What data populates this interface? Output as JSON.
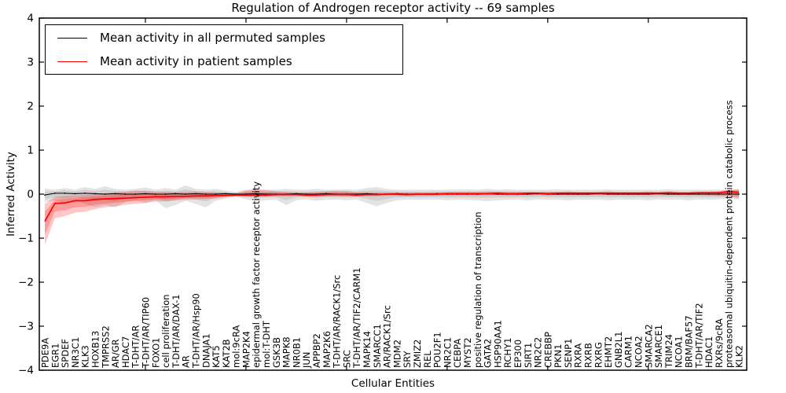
{
  "figure": {
    "title": "Regulation of Androgen receptor activity -- 69 samples",
    "xlabel": "Cellular Entities",
    "ylabel": "Inferred Activity"
  },
  "legend": {
    "items": [
      {
        "label": "Mean activity in all permuted samples",
        "color": "#000000"
      },
      {
        "label": "Mean activity in patient samples",
        "color": "#ff0000"
      }
    ]
  },
  "chart_data": {
    "type": "line",
    "title": "Regulation of Androgen receptor activity -- 69 samples",
    "xlabel": "Cellular Entities",
    "ylabel": "Inferred Activity",
    "ylim": [
      -4,
      4
    ],
    "yticks": [
      -4,
      -3,
      -2,
      -1,
      0,
      1,
      2,
      3,
      4
    ],
    "grid": false,
    "legend_position": "upper left",
    "categories": [
      "PDE9A",
      "EGR1",
      "SPDEF",
      "NR3C1",
      "KLK3",
      "HOXB13",
      "TMPRSS2",
      "AR/GR",
      "HDAC7",
      "T-DHT/AR",
      "T-DHT/AR/TIP60",
      "FOXO1",
      "cell proliferation",
      "T-DHT/AR/DAX-1",
      "AR",
      "T-DHT/AR/Hsp90",
      "DNAJA1",
      "KAT5",
      "KAT2B",
      "mol:9cRA",
      "MAP2K4",
      "epidermal growth factor receptor activity",
      "mol:T-DHT",
      "GSK3B",
      "MAPK8",
      "NR0B1",
      "JUN",
      "APPBP2",
      "MAP2K6",
      "T-DHT/AR/RACK1/Src",
      "SRC",
      "T-DHT/AR/TIF2/CARM1",
      "MAPK14",
      "SMARCC1",
      "AR/RACK1/Src",
      "MDM2",
      "SRY",
      "ZMIZ2",
      "REL",
      "POU2F1",
      "NR2C1",
      "CEBPA",
      "MYST2",
      "positive regulation of transcription",
      "GATA2",
      "HSP90AA1",
      "RCHY1",
      "EP300",
      "SIRT1",
      "NR2C2",
      "CREBBP",
      "PKN1",
      "SENP1",
      "RXRA",
      "RXRB",
      "RXRG",
      "EHMT2",
      "GNB2L1",
      "CARM1",
      "NCOA2",
      "SMARCA2",
      "SMARCE1",
      "TRIM24",
      "NCOA1",
      "BRM/BAF57",
      "T-DHT/AR/TIF2",
      "HDAC1",
      "RXRs/9cRA",
      "proteasomal ubiquitin-dependent protein catabolic process",
      "KLK2"
    ],
    "series": [
      {
        "name": "Mean activity in all permuted samples",
        "color": "#000000",
        "band_color": "#999999",
        "values": [
          -0.02,
          0.02,
          0.02,
          0.01,
          0.02,
          0.01,
          0,
          0.01,
          0,
          0,
          0.01,
          0,
          0,
          0.01,
          0,
          0.01,
          0,
          0,
          0.01,
          0,
          0,
          0.01,
          0,
          0,
          0,
          0.01,
          0,
          0,
          0.01,
          0,
          0,
          0,
          0.01,
          0,
          0,
          0.01,
          0,
          0,
          0,
          0.01,
          0,
          0,
          0,
          0,
          0.01,
          0,
          0,
          0,
          0,
          0.01,
          0,
          0,
          0,
          0,
          0,
          0.01,
          0,
          0,
          0,
          0,
          0,
          0.01,
          0,
          0,
          0,
          0,
          0,
          0,
          0,
          0
        ],
        "band_lo": [
          -0.18,
          -0.14,
          -0.2,
          -0.13,
          -0.22,
          -0.3,
          -0.25,
          -0.3,
          -0.18,
          -0.14,
          -0.2,
          -0.14,
          -0.32,
          -0.25,
          -0.15,
          -0.22,
          -0.3,
          -0.15,
          -0.1,
          -0.06,
          -0.12,
          -0.16,
          -0.14,
          -0.12,
          -0.25,
          -0.14,
          -0.12,
          -0.15,
          -0.13,
          -0.12,
          -0.14,
          -0.12,
          -0.2,
          -0.28,
          -0.2,
          -0.14,
          -0.12,
          -0.13,
          -0.12,
          -0.12,
          -0.14,
          -0.12,
          -0.13,
          -0.14,
          -0.16,
          -0.14,
          -0.13,
          -0.12,
          -0.14,
          -0.12,
          -0.13,
          -0.12,
          -0.14,
          -0.12,
          -0.13,
          -0.12,
          -0.14,
          -0.12,
          -0.13,
          -0.12,
          -0.14,
          -0.12,
          -0.13,
          -0.12,
          -0.14,
          -0.12,
          -0.13,
          -0.12,
          -0.1,
          -0.12
        ],
        "band_hi": [
          0.13,
          0.1,
          0.14,
          0.1,
          0.16,
          0.12,
          0.18,
          0.12,
          0.1,
          0.12,
          0.15,
          0.1,
          0.14,
          0.1,
          0.2,
          0.12,
          0.1,
          0.12,
          0.08,
          0.05,
          0.1,
          0.12,
          0.1,
          0.1,
          0.12,
          0.1,
          0.1,
          0.12,
          0.1,
          0.1,
          0.11,
          0.1,
          0.14,
          0.16,
          0.12,
          0.1,
          0.1,
          0.1,
          0.1,
          0.1,
          0.1,
          0.1,
          0.11,
          0.1,
          0.12,
          0.1,
          0.11,
          0.1,
          0.1,
          0.1,
          0.1,
          0.11,
          0.1,
          0.1,
          0.1,
          0.1,
          0.11,
          0.1,
          0.1,
          0.1,
          0.1,
          0.1,
          0.11,
          0.1,
          0.1,
          0.1,
          0.1,
          0.1,
          0.09,
          0.1
        ]
      },
      {
        "name": "Mean activity in patient samples",
        "color": "#ff0000",
        "band_color": "#ff0000",
        "values": [
          -0.62,
          -0.21,
          -0.2,
          -0.15,
          -0.15,
          -0.12,
          -0.11,
          -0.1,
          -0.09,
          -0.08,
          -0.07,
          -0.06,
          -0.06,
          -0.05,
          -0.05,
          -0.04,
          -0.04,
          -0.03,
          -0.03,
          -0.02,
          -0.02,
          -0.02,
          -0.02,
          -0.01,
          -0.01,
          -0.01,
          -0.02,
          -0.02,
          -0.01,
          -0.01,
          -0.01,
          -0.02,
          -0.01,
          -0.01,
          0,
          0,
          -0.01,
          0,
          0,
          0,
          0.01,
          0.01,
          0.01,
          0.01,
          0.01,
          0.02,
          0.01,
          0.01,
          0.02,
          0.02,
          0.01,
          0.02,
          0.02,
          0.02,
          0.02,
          0.02,
          0.02,
          0.02,
          0.02,
          0.02,
          0.02,
          0.02,
          0.03,
          0.02,
          0.02,
          0.03,
          0.03,
          0.03,
          0.06,
          0.04
        ],
        "band_lo": [
          -1.16,
          -0.55,
          -0.5,
          -0.42,
          -0.4,
          -0.34,
          -0.3,
          -0.28,
          -0.24,
          -0.22,
          -0.2,
          -0.17,
          -0.16,
          -0.14,
          -0.13,
          -0.12,
          -0.11,
          -0.1,
          -0.07,
          -0.05,
          -0.06,
          -0.06,
          -0.06,
          -0.05,
          -0.05,
          -0.04,
          -0.06,
          -0.06,
          -0.05,
          -0.05,
          -0.05,
          -0.06,
          -0.05,
          -0.05,
          -0.04,
          -0.04,
          -0.05,
          -0.04,
          -0.04,
          -0.04,
          -0.03,
          -0.03,
          -0.03,
          -0.03,
          -0.03,
          -0.02,
          -0.03,
          -0.03,
          -0.02,
          -0.02,
          -0.03,
          -0.02,
          -0.02,
          -0.02,
          -0.02,
          -0.02,
          -0.02,
          -0.02,
          -0.02,
          -0.02,
          -0.02,
          -0.02,
          -0.02,
          -0.02,
          -0.02,
          -0.02,
          -0.03,
          -0.04,
          -0.04,
          -0.1
        ],
        "band_hi": [
          -0.22,
          -0.06,
          -0.04,
          -0.03,
          -0.02,
          0,
          0.02,
          0.04,
          0.06,
          0.08,
          0.07,
          0.06,
          0.05,
          0.05,
          0.05,
          0.06,
          0.05,
          0.04,
          0.03,
          0.02,
          0.08,
          0.1,
          0.09,
          0.07,
          0.05,
          0.04,
          0.04,
          0.05,
          0.07,
          0.08,
          0.07,
          0.05,
          0.04,
          0.04,
          0.04,
          0.04,
          0.04,
          0.04,
          0.04,
          0.04,
          0.05,
          0.05,
          0.05,
          0.05,
          0.05,
          0.06,
          0.05,
          0.05,
          0.05,
          0.05,
          0.05,
          0.05,
          0.06,
          0.05,
          0.05,
          0.05,
          0.06,
          0.05,
          0.05,
          0.05,
          0.06,
          0.05,
          0.06,
          0.05,
          0.05,
          0.06,
          0.06,
          0.07,
          0.1,
          0.12
        ]
      }
    ]
  }
}
